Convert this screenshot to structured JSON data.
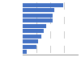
{
  "chart_data": {
    "type": "bar",
    "orientation": "horizontal",
    "categories": [
      null,
      null,
      null,
      null,
      null,
      null,
      null,
      null,
      null,
      null
    ],
    "values": [
      73,
      56,
      54,
      53,
      42,
      38,
      34,
      28,
      24,
      7
    ],
    "color": "#4472c4",
    "xlim": [
      0,
      100
    ],
    "xticks": [
      25,
      50,
      75,
      100
    ],
    "grid": true,
    "tick_labels": false
  }
}
